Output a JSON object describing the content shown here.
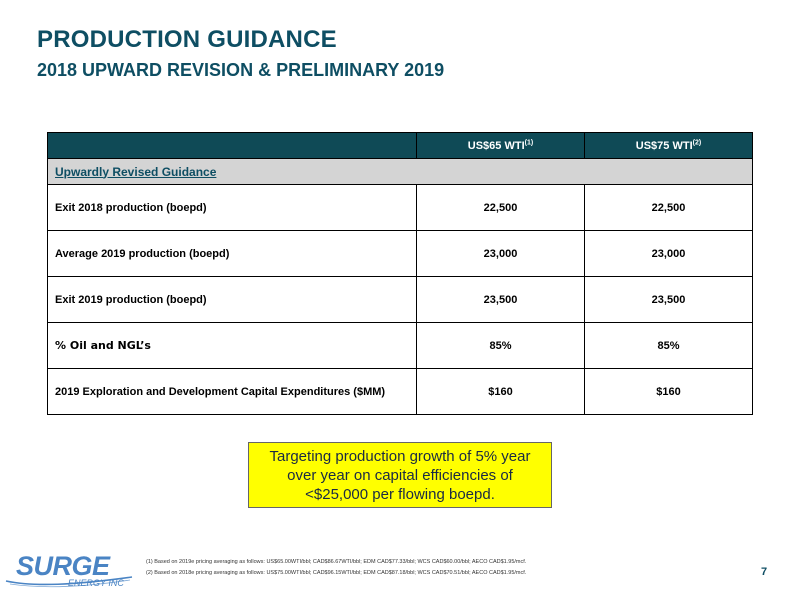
{
  "header": {
    "title": "PRODUCTION GUIDANCE",
    "subtitle": "2018 UPWARD REVISION & PRELIMINARY 2019"
  },
  "table": {
    "columns": [
      {
        "label": "US$65 WTI",
        "note": "(1)"
      },
      {
        "label": "US$75 WTI",
        "note": "(2)"
      }
    ],
    "section_label": "Upwardly Revised Guidance",
    "rows": [
      {
        "label": "Exit 2018 production (boepd)",
        "values": [
          "22,500",
          "22,500"
        ]
      },
      {
        "label": "Average 2019 production (boepd)",
        "values": [
          "23,000",
          "23,000"
        ]
      },
      {
        "label": "Exit 2019 production (boepd)",
        "values": [
          "23,500",
          "23,500"
        ]
      },
      {
        "label": "% Oil and NGL’s",
        "values": [
          "85%",
          "85%"
        ]
      },
      {
        "label": "2019 Exploration and Development Capital Expenditures ($MM)",
        "values": [
          "$160",
          "$160"
        ]
      }
    ]
  },
  "callout": {
    "text": "Targeting production growth of 5% year over year on capital efficiencies of <$25,000 per flowing boepd."
  },
  "footnotes": [
    "(1) Based on 2019e pricing averaging as follows: US$65.00WTI/bbl; CAD$86.67WTI/bbl; EDM CAD$77.33/bbl; WCS CAD$60.00/bbl; AECO CAD$1.95/mcf.",
    "(2) Based on 2018e pricing averaging as follows: US$75.00WTI/bbl; CAD$96.15WTI/bbl; EDM CAD$87.18/bbl; WCS CAD$70.51/bbl; AECO CAD$1.95/mcf."
  ],
  "logo": {
    "word": "SURGE",
    "sub": "ENERGY INC"
  },
  "page_number": "7",
  "colors": {
    "heading": "#0e4e63",
    "table_header": "#0f4a56",
    "section_row": "#d4d4d4",
    "callout_bg": "#ffff00",
    "logo": "#4a84c4"
  }
}
